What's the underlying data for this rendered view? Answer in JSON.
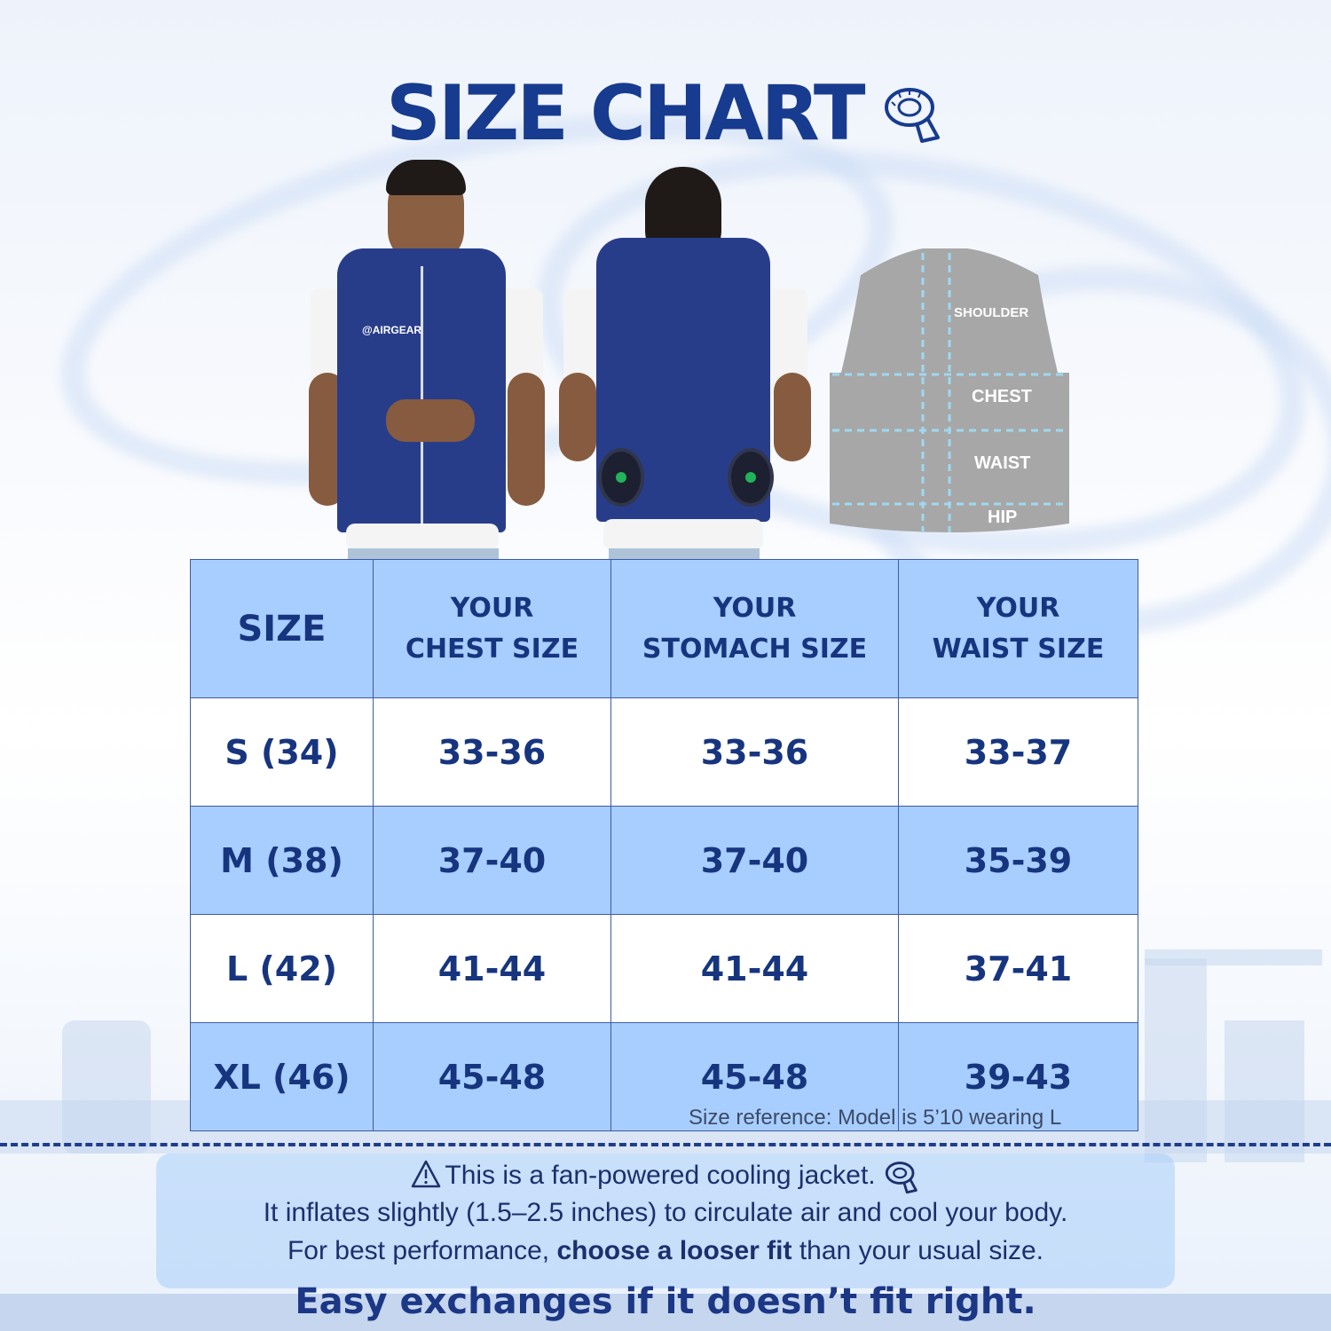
{
  "title": "SIZE CHART",
  "diagram": {
    "labels": [
      "SHOULDER",
      "CHEST",
      "WAIST",
      "HIP"
    ]
  },
  "model_front": {
    "brand": "@AIRGEAR"
  },
  "table": {
    "headers": [
      {
        "line1": "SIZE",
        "line2": ""
      },
      {
        "line1": "YOUR",
        "line2": "CHEST SIZE"
      },
      {
        "line1": "YOUR",
        "line2": "STOMACH SIZE"
      },
      {
        "line1": "YOUR",
        "line2": "WAIST SIZE"
      }
    ],
    "rows": [
      {
        "size": "S (34)",
        "chest": "33-36",
        "stomach": "33-36",
        "waist": "33-37"
      },
      {
        "size": "M (38)",
        "chest": "37-40",
        "stomach": "37-40",
        "waist": "35-39"
      },
      {
        "size": "L (42)",
        "chest": "41-44",
        "stomach": "41-44",
        "waist": "37-41"
      },
      {
        "size": "XL (46)",
        "chest": "45-48",
        "stomach": "45-48",
        "waist": "39-43"
      }
    ]
  },
  "size_reference": "Size reference: Model is 5’10 wearing L",
  "info": {
    "line1": "This is a fan-powered cooling jacket.",
    "line2": "It inflates slightly (1.5–2.5 inches) to circulate air and cool your body.",
    "line3_prefix": "For best performance, ",
    "line3_bold": "choose a looser fit",
    "line3_suffix": " than your usual size."
  },
  "footer": "Easy exchanges if it doesn’t fit right.",
  "colors": {
    "primary": "#173b8f",
    "table_blue": "#a8ceff",
    "vest": "#283d8a"
  }
}
